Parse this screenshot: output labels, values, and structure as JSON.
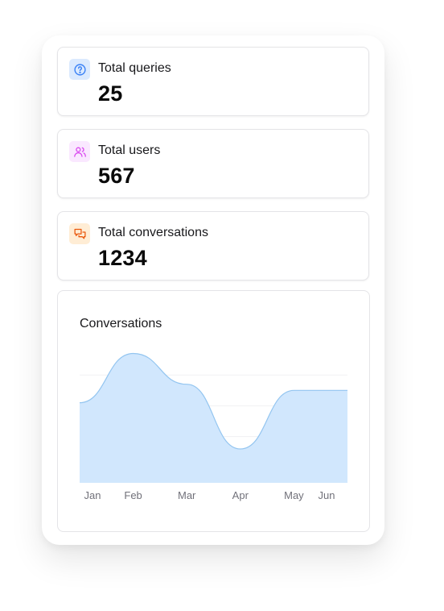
{
  "stats": [
    {
      "label": "Total queries",
      "value": "25",
      "icon": "question-circle-icon",
      "color": "#3b82f6",
      "bg": "#dbeafe"
    },
    {
      "label": "Total users",
      "value": "567",
      "icon": "users-icon",
      "color": "#d946ef",
      "bg": "#fae8ff"
    },
    {
      "label": "Total conversations",
      "value": "1234",
      "icon": "chat-bubbles-icon",
      "color": "#ea580c",
      "bg": "#ffedd5"
    }
  ],
  "chart_data": {
    "type": "area",
    "title": "Conversations",
    "categories": [
      "Jan",
      "Feb",
      "Mar",
      "Apr",
      "May",
      "Jun"
    ],
    "series": [
      {
        "values": [
          260,
          420,
          320,
          110,
          300,
          300
        ]
      }
    ],
    "ylim": [
      0,
      450
    ],
    "grid": true,
    "fill_color": "#d1e7fd",
    "line_color": "#93c5f0"
  }
}
